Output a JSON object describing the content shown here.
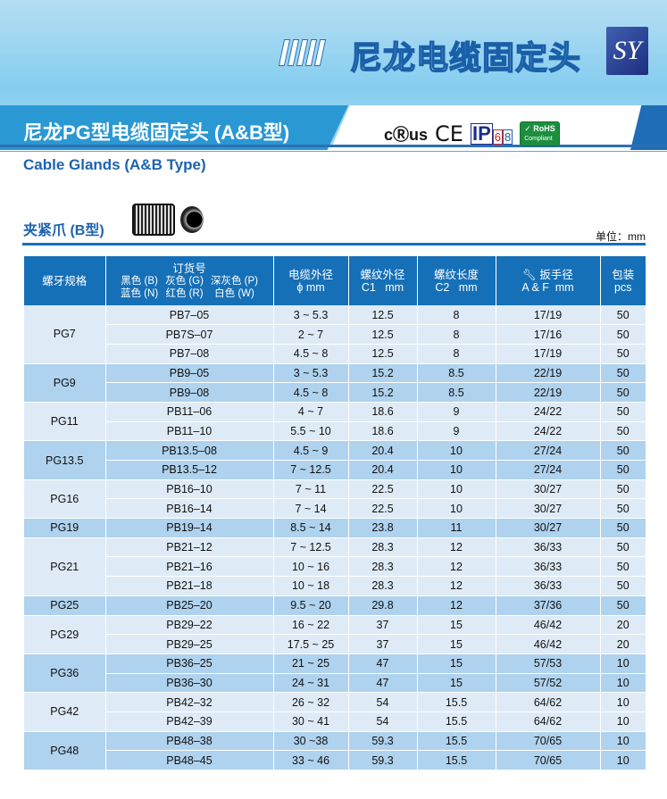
{
  "banner": {
    "title": "尼龙电缆固定头",
    "logo": "SY"
  },
  "subtitle": "尼龙PG型电缆固定头 (A&B型)",
  "certs": {
    "ul": "cⓇus",
    "ce": "CE",
    "ip": "IP",
    "ip_digit1": "6",
    "ip_digit2": "8",
    "rohs": "RoHS",
    "rohs_sub": "Compliant"
  },
  "english_title": "Cable Glands (A&B Type)",
  "type_title": "夹紧爪 (B型)",
  "unit": "单位：mm",
  "colors": {
    "header": "#1570b8",
    "row_light": "#deebf7",
    "row_dark": "#afd2ee",
    "title_blue": "#1d63ae"
  },
  "table": {
    "headers": {
      "thread": "螺牙规格",
      "order": "订货号",
      "colors": [
        "黑色 (B)",
        "灰色 (G)",
        "深灰色 (P)",
        "蓝色 (N)",
        "红色 (R)",
        "白色 (W)"
      ],
      "cable_od": "电缆外径",
      "cable_od_unit": "ϕ mm",
      "thread_od": "螺纹外径",
      "thread_od_unit": "C1   mm",
      "thread_len": "螺纹长度",
      "thread_len_unit": "C2   mm",
      "wrench": "扳手径",
      "wrench_unit": "A & F  mm",
      "pack": "包装",
      "pack_unit": "pcs"
    },
    "groups": [
      {
        "pg": "PG7",
        "rows": [
          [
            "PB7–05",
            "3 ~ 5.3",
            "12.5",
            "8",
            "17/19",
            "50"
          ],
          [
            "PB7S–07",
            "2 ~ 7",
            "12.5",
            "8",
            "17/16",
            "50"
          ],
          [
            "PB7–08",
            "4.5 ~ 8",
            "12.5",
            "8",
            "17/19",
            "50"
          ]
        ]
      },
      {
        "pg": "PG9",
        "rows": [
          [
            "PB9–05",
            "3 ~ 5.3",
            "15.2",
            "8.5",
            "22/19",
            "50"
          ],
          [
            "PB9–08",
            "4.5 ~ 8",
            "15.2",
            "8.5",
            "22/19",
            "50"
          ]
        ]
      },
      {
        "pg": "PG11",
        "rows": [
          [
            "PB11–06",
            "4 ~ 7",
            "18.6",
            "9",
            "24/22",
            "50"
          ],
          [
            "PB11–10",
            "5.5 ~ 10",
            "18.6",
            "9",
            "24/22",
            "50"
          ]
        ]
      },
      {
        "pg": "PG13.5",
        "rows": [
          [
            "PB13.5–08",
            "4.5 ~ 9",
            "20.4",
            "10",
            "27/24",
            "50"
          ],
          [
            "PB13.5–12",
            "7 ~ 12.5",
            "20.4",
            "10",
            "27/24",
            "50"
          ]
        ]
      },
      {
        "pg": "PG16",
        "rows": [
          [
            "PB16–10",
            "7 ~ 11",
            "22.5",
            "10",
            "30/27",
            "50"
          ],
          [
            "PB16–14",
            "7 ~ 14",
            "22.5",
            "10",
            "30/27",
            "50"
          ]
        ]
      },
      {
        "pg": "PG19",
        "rows": [
          [
            "PB19–14",
            "8.5 ~ 14",
            "23.8",
            "11",
            "30/27",
            "50"
          ]
        ]
      },
      {
        "pg": "PG21",
        "rows": [
          [
            "PB21–12",
            "7 ~ 12.5",
            "28.3",
            "12",
            "36/33",
            "50"
          ],
          [
            "PB21–16",
            "10 ~ 16",
            "28.3",
            "12",
            "36/33",
            "50"
          ],
          [
            "PB21–18",
            "10 ~ 18",
            "28.3",
            "12",
            "36/33",
            "50"
          ]
        ]
      },
      {
        "pg": "PG25",
        "rows": [
          [
            "PB25–20",
            "9.5 ~ 20",
            "29.8",
            "12",
            "37/36",
            "50"
          ]
        ]
      },
      {
        "pg": "PG29",
        "rows": [
          [
            "PB29–22",
            "16 ~ 22",
            "37",
            "15",
            "46/42",
            "20"
          ],
          [
            "PB29–25",
            "17.5 ~ 25",
            "37",
            "15",
            "46/42",
            "20"
          ]
        ]
      },
      {
        "pg": "PG36",
        "rows": [
          [
            "PB36–25",
            "21 ~ 25",
            "47",
            "15",
            "57/53",
            "10"
          ],
          [
            "PB36–30",
            "24 ~ 31",
            "47",
            "15",
            "57/52",
            "10"
          ]
        ]
      },
      {
        "pg": "PG42",
        "rows": [
          [
            "PB42–32",
            "26 ~ 32",
            "54",
            "15.5",
            "64/62",
            "10"
          ],
          [
            "PB42–39",
            "30 ~ 41",
            "54",
            "15.5",
            "64/62",
            "10"
          ]
        ]
      },
      {
        "pg": "PG48",
        "rows": [
          [
            "PB48–38",
            "30 ~38",
            "59.3",
            "15.5",
            "70/65",
            "10"
          ],
          [
            "PB48–45",
            "33 ~ 46",
            "59.3",
            "15.5",
            "70/65",
            "10"
          ]
        ]
      }
    ]
  }
}
